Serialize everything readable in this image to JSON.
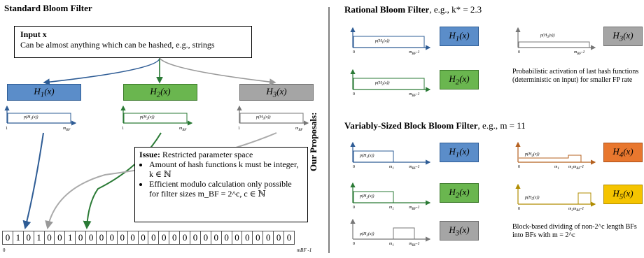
{
  "left": {
    "title": "Standard Bloom Filter",
    "input_label": "Input x",
    "input_desc": "Can be almost anything which can be hashed, e.g., strings",
    "hashes": [
      {
        "label": "H",
        "sub": "1",
        "arg": "(x)",
        "dist": "p(H1(x))",
        "color": "#5b8dc9"
      },
      {
        "label": "H",
        "sub": "2",
        "arg": "(x)",
        "dist": "p(H2(x))",
        "color": "#6ab64f"
      },
      {
        "label": "H",
        "sub": "3",
        "arg": "(x)",
        "dist": "p(H3(x))",
        "color": "#a5a5a5"
      }
    ],
    "axis_start": "1",
    "axis_end": "mBF",
    "issue_head": "Issue:",
    "issue_text": " Restricted parameter space",
    "issue_items": [
      "Amount of hash functions k must be integer, k ∈ ℕ",
      "Efficient modulo calculation only possible for filter sizes m_BF = 2^c, c ∈ ℕ"
    ],
    "bits": [
      0,
      1,
      0,
      1,
      0,
      0,
      1,
      0,
      0,
      0,
      0,
      0,
      0,
      0,
      0,
      0,
      0,
      0,
      0,
      0,
      0,
      0,
      0,
      0,
      0,
      0,
      0,
      0
    ],
    "bits_start": "0",
    "bits_end": "mBF -1"
  },
  "divider_label": "Our Proposals:",
  "rational": {
    "title": "Rational Bloom Filter",
    "title_rest": ", e.g., k* = 2.3",
    "desc": "Probabilistic activation of last hash functions (deterministic on input) for smaller FP rate"
  },
  "vsb": {
    "title": "Variably-Sized Block Bloom Filter",
    "title_rest": ", e.g., m = 11",
    "desc": "Block-based dividing of non-2^c length BFs into BFs with m = 2^c"
  },
  "labels": {
    "zero": "0",
    "mbf_minus": "mBF-1",
    "m1": "m1",
    "m2mbf": "m2mBF-1"
  }
}
